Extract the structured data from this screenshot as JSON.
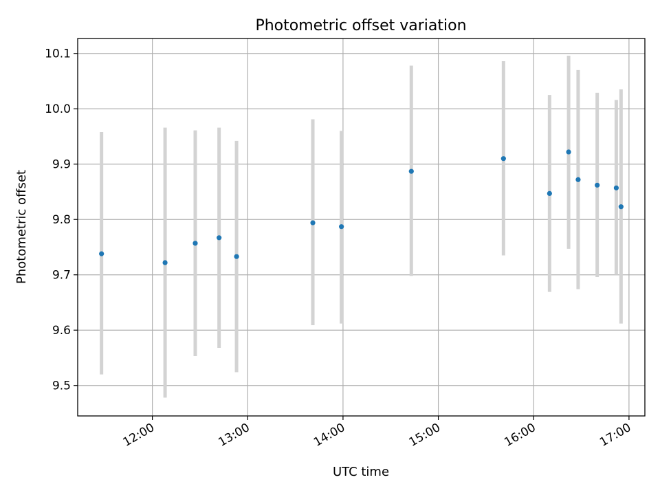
{
  "chart_data": {
    "type": "scatter",
    "title": "Photometric offset variation",
    "xlabel": "UTC time",
    "ylabel": "Photometric offset",
    "x_ticks": [
      "12:00",
      "13:00",
      "14:00",
      "15:00",
      "16:00",
      "17:00"
    ],
    "y_ticks": [
      "9.5",
      "9.6",
      "9.7",
      "9.8",
      "9.9",
      "10.0",
      "10.1"
    ],
    "xlim": [
      "11:13",
      "17:10"
    ],
    "ylim": [
      9.445,
      10.127
    ],
    "grid": true,
    "colors": {
      "point": "#1f77b4",
      "errorbar": "#d3d3d3",
      "grid": "#b0b0b0"
    },
    "series": [
      {
        "points": [
          {
            "time": "11:28",
            "y": 9.738,
            "y_low": 9.52,
            "y_high": 9.958
          },
          {
            "time": "12:08",
            "y": 9.722,
            "y_low": 9.478,
            "y_high": 9.966
          },
          {
            "time": "12:27",
            "y": 9.757,
            "y_low": 9.553,
            "y_high": 9.961
          },
          {
            "time": "12:42",
            "y": 9.767,
            "y_low": 9.568,
            "y_high": 9.966
          },
          {
            "time": "12:53",
            "y": 9.733,
            "y_low": 9.524,
            "y_high": 9.942
          },
          {
            "time": "13:41",
            "y": 9.794,
            "y_low": 9.609,
            "y_high": 9.981
          },
          {
            "time": "13:59",
            "y": 9.787,
            "y_low": 9.612,
            "y_high": 9.96
          },
          {
            "time": "14:43",
            "y": 9.887,
            "y_low": 9.698,
            "y_high": 10.078
          },
          {
            "time": "15:41",
            "y": 9.91,
            "y_low": 9.735,
            "y_high": 10.086
          },
          {
            "time": "16:10",
            "y": 9.847,
            "y_low": 9.669,
            "y_high": 10.025
          },
          {
            "time": "16:22",
            "y": 9.922,
            "y_low": 9.747,
            "y_high": 10.096
          },
          {
            "time": "16:28",
            "y": 9.872,
            "y_low": 9.674,
            "y_high": 10.07
          },
          {
            "time": "16:40",
            "y": 9.862,
            "y_low": 9.696,
            "y_high": 10.029
          },
          {
            "time": "16:52",
            "y": 9.857,
            "y_low": 9.7,
            "y_high": 10.016
          },
          {
            "time": "16:55",
            "y": 9.823,
            "y_low": 9.612,
            "y_high": 10.035
          }
        ]
      }
    ]
  }
}
